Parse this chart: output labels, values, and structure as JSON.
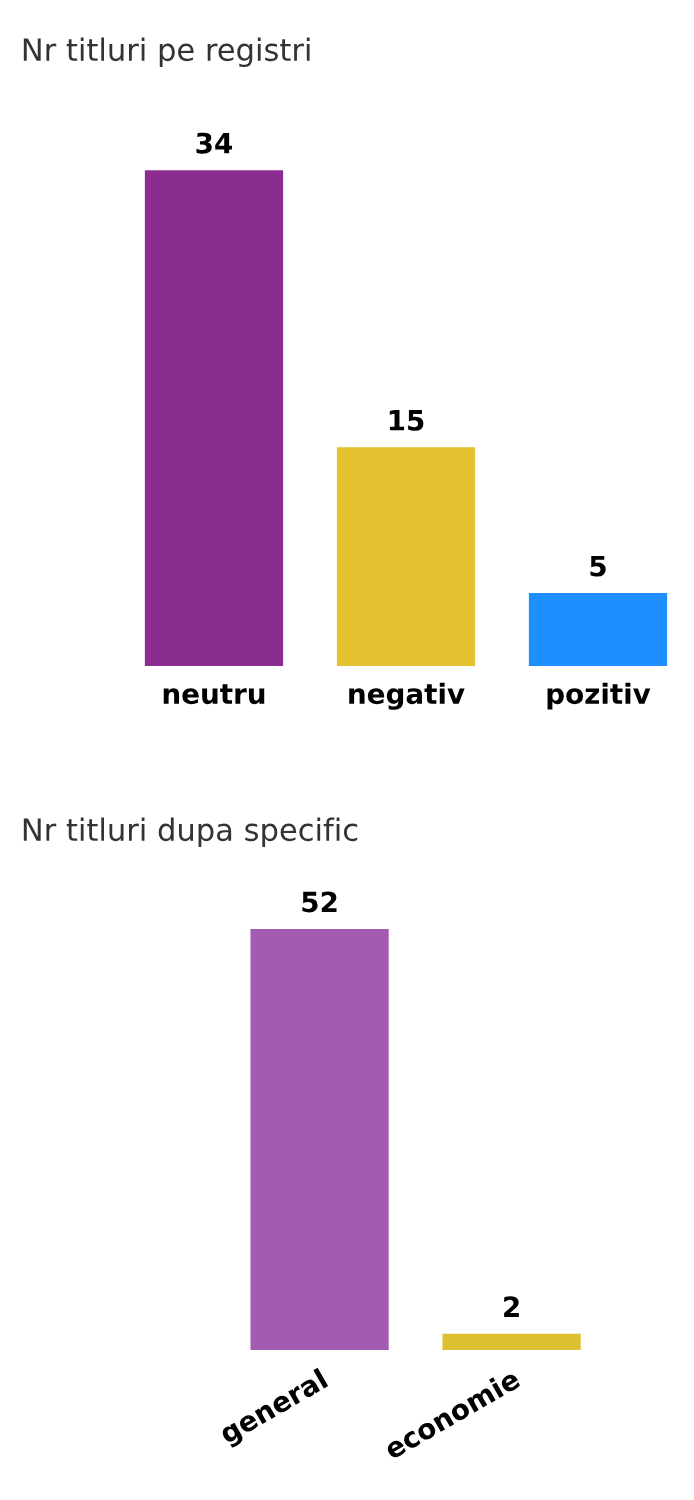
{
  "chart_data": [
    {
      "type": "bar",
      "title": "Nr titluri pe registri",
      "categories": [
        "neutru",
        "negativ",
        "pozitiv"
      ],
      "values": [
        34,
        15,
        5
      ],
      "colors": [
        "#8b2c91",
        "#e3c12f",
        "#1e8fff"
      ],
      "data_labels": true
    },
    {
      "type": "bar",
      "title": "Nr titluri dupa specific",
      "categories": [
        "general",
        "economie"
      ],
      "values": [
        52,
        2
      ],
      "colors": [
        "#a35bb2",
        "#ddc02f"
      ],
      "data_labels": true
    }
  ]
}
